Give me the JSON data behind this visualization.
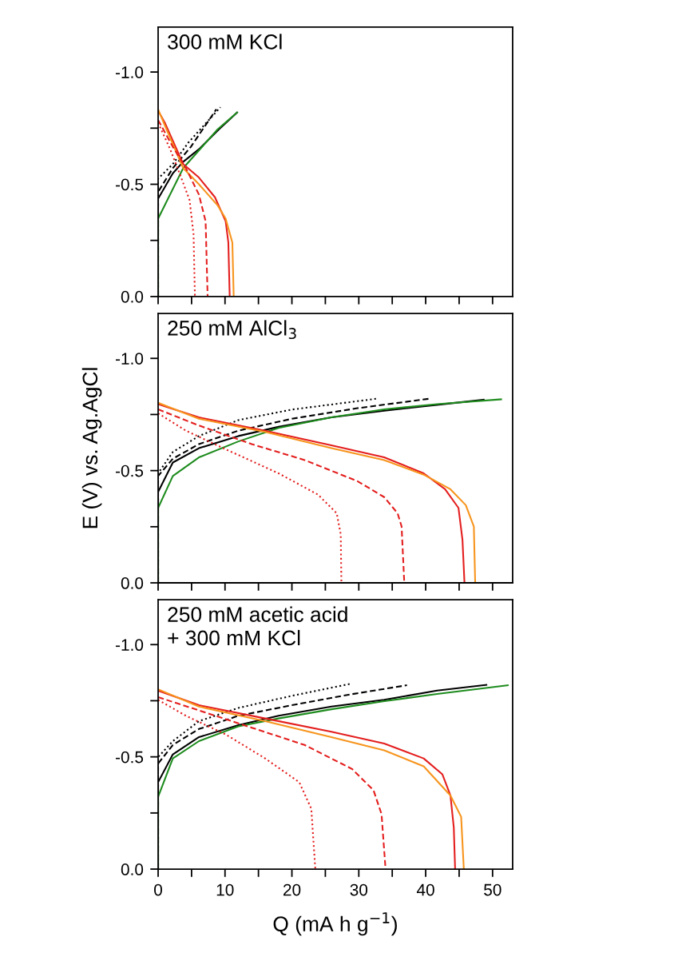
{
  "chart_data": [
    {
      "type": "line",
      "title": "300 mM KCl",
      "xlim": [
        0,
        53
      ],
      "ylim": [
        0,
        -1.2
      ],
      "tick_labels": "y",
      "xticks": [
        0,
        {
          "value": 5,
          "label": null
        },
        10,
        {
          "value": 15,
          "label": null
        },
        20,
        {
          "value": 25,
          "label": null
        },
        30,
        {
          "value": 35,
          "label": null
        },
        40,
        {
          "value": 45,
          "label": null
        },
        50
      ],
      "yticks": [
        {
          "value": 0.0,
          "label": "0.0"
        },
        {
          "value": -0.25,
          "label": null
        },
        {
          "value": -0.5,
          "label": "-0.5"
        },
        {
          "value": -0.75,
          "label": null
        },
        {
          "value": -1.0,
          "label": "-1.0"
        }
      ],
      "series": [
        {
          "color": "#000000",
          "line_style": "solid",
          "x": [
            0,
            0,
            2.2,
            3.75,
            6.1,
            9.1,
            11.9
          ],
          "values": [
            0,
            -0.436,
            -0.549,
            -0.6,
            -0.656,
            -0.745,
            -0.822
          ]
        },
        {
          "color": "#000000",
          "line_style": "dashed",
          "x": [
            0,
            0,
            2.2,
            4.9,
            8.7
          ],
          "values": [
            0,
            -0.466,
            -0.572,
            -0.667,
            -0.834
          ]
        },
        {
          "color": "#000000",
          "line_style": "dotted",
          "x": [
            0,
            0,
            2.2,
            4.5,
            9.3
          ],
          "values": [
            0,
            -0.525,
            -0.59,
            -0.685,
            -0.843
          ]
        },
        {
          "color": "#1e8c1e",
          "line_style": "solid",
          "x": [
            0,
            0,
            3.75,
            8.9,
            11.9
          ],
          "values": [
            0,
            -0.347,
            -0.572,
            -0.745,
            -0.822
          ]
        },
        {
          "color": "#e41e1e",
          "line_style": "solid",
          "x": [
            0,
            1,
            3.75,
            6.1,
            8.5,
            10.1,
            10.5,
            10.7
          ],
          "values": [
            -0.828,
            -0.774,
            -0.59,
            -0.53,
            -0.442,
            -0.335,
            -0.24,
            0
          ]
        },
        {
          "color": "#f7941d",
          "line_style": "solid",
          "x": [
            0,
            1,
            3.75,
            6.1,
            8.9,
            10.1,
            11.1,
            11.3
          ],
          "values": [
            -0.834,
            -0.762,
            -0.572,
            -0.5,
            -0.406,
            -0.347,
            -0.24,
            0
          ]
        },
        {
          "color": "#e41e1e",
          "line_style": "dashed",
          "x": [
            0,
            2.2,
            4.15,
            6.1,
            7.1,
            7.4
          ],
          "values": [
            -0.786,
            -0.667,
            -0.572,
            -0.454,
            -0.335,
            0
          ]
        },
        {
          "color": "#e41e1e",
          "line_style": "dotted",
          "x": [
            0,
            1.8,
            3.2,
            4.7,
            5.3,
            5.5
          ],
          "values": [
            -0.774,
            -0.656,
            -0.549,
            -0.43,
            -0.276,
            0
          ]
        }
      ]
    },
    {
      "type": "line",
      "title": "250 mM AlCl$_{3}$",
      "ylabel": "E (V) vs. Ag.AgCl",
      "xlim": [
        0,
        53
      ],
      "ylim": [
        0,
        -1.2
      ],
      "tick_labels": "y",
      "xticks": [
        0,
        {
          "value": 5,
          "label": null
        },
        10,
        {
          "value": 15,
          "label": null
        },
        20,
        {
          "value": 25,
          "label": null
        },
        30,
        {
          "value": 35,
          "label": null
        },
        40,
        {
          "value": 45,
          "label": null
        },
        50
      ],
      "yticks": [
        {
          "value": 0.0,
          "label": "0.0"
        },
        {
          "value": -0.25,
          "label": null
        },
        {
          "value": -0.5,
          "label": "-0.5"
        },
        {
          "value": -0.75,
          "label": null
        },
        {
          "value": -1.0,
          "label": "-1.0"
        }
      ],
      "series": [
        {
          "color": "#000000",
          "line_style": "solid",
          "x": [
            0,
            0,
            2.2,
            6.1,
            12,
            18,
            25.9,
            33.8,
            41.7,
            48.8
          ],
          "values": [
            0,
            -0.405,
            -0.536,
            -0.6,
            -0.654,
            -0.695,
            -0.737,
            -0.767,
            -0.793,
            -0.816
          ]
        },
        {
          "color": "#000000",
          "line_style": "dashed",
          "x": [
            0,
            0,
            2.2,
            6.1,
            12,
            20,
            29.8,
            40.5
          ],
          "values": [
            0,
            -0.476,
            -0.553,
            -0.618,
            -0.678,
            -0.731,
            -0.778,
            -0.82
          ]
        },
        {
          "color": "#000000",
          "line_style": "dotted",
          "x": [
            0,
            0,
            2.2,
            6.1,
            12,
            20,
            32.6
          ],
          "values": [
            0,
            -0.488,
            -0.583,
            -0.654,
            -0.725,
            -0.772,
            -0.82
          ]
        },
        {
          "color": "#1e8c1e",
          "line_style": "solid",
          "x": [
            0,
            0,
            2.2,
            6.1,
            12,
            18,
            25.9,
            33.8,
            41.7,
            51.4
          ],
          "values": [
            0,
            -0.334,
            -0.476,
            -0.559,
            -0.63,
            -0.69,
            -0.737,
            -0.773,
            -0.796,
            -0.818
          ]
        },
        {
          "color": "#e41e1e",
          "line_style": "solid",
          "x": [
            0,
            6.1,
            16,
            25.9,
            33.8,
            39.7,
            42.9,
            44.9,
            45.5,
            45.8
          ],
          "values": [
            -0.796,
            -0.737,
            -0.678,
            -0.613,
            -0.559,
            -0.488,
            -0.417,
            -0.334,
            -0.192,
            0
          ]
        },
        {
          "color": "#f7941d",
          "line_style": "solid",
          "x": [
            0,
            6.1,
            16,
            25.9,
            33.8,
            39.7,
            43.7,
            46,
            47.2,
            47.4
          ],
          "values": [
            -0.802,
            -0.731,
            -0.672,
            -0.6,
            -0.547,
            -0.482,
            -0.417,
            -0.346,
            -0.251,
            0
          ]
        },
        {
          "color": "#e41e1e",
          "line_style": "dashed",
          "x": [
            0,
            6.1,
            14,
            21.9,
            29.8,
            33.8,
            35.8,
            36.4,
            36.8
          ],
          "values": [
            -0.773,
            -0.701,
            -0.618,
            -0.547,
            -0.453,
            -0.382,
            -0.31,
            -0.251,
            0
          ]
        },
        {
          "color": "#e41e1e",
          "line_style": "dotted",
          "x": [
            0,
            4.15,
            10.1,
            18,
            23.9,
            26.7,
            27.3,
            27.4
          ],
          "values": [
            -0.755,
            -0.678,
            -0.595,
            -0.488,
            -0.393,
            -0.31,
            -0.216,
            0
          ]
        }
      ]
    },
    {
      "type": "line",
      "title": "250 mM acetic acid\n+ 300 mM KCl",
      "xlabel": "Q (mA h g$^{−1}$)",
      "xlim": [
        0,
        53
      ],
      "ylim": [
        0,
        -1.2
      ],
      "xticks": [
        0,
        {
          "value": 5,
          "label": null
        },
        10,
        {
          "value": 15,
          "label": null
        },
        20,
        {
          "value": 25,
          "label": null
        },
        30,
        {
          "value": 35,
          "label": null
        },
        40,
        {
          "value": 45,
          "label": null
        },
        50
      ],
      "yticks": [
        {
          "value": 0.0,
          "label": "0.0"
        },
        {
          "value": -0.25,
          "label": null
        },
        {
          "value": -0.5,
          "label": "-0.5"
        },
        {
          "value": -0.75,
          "label": null
        },
        {
          "value": -1.0,
          "label": "-1.0"
        }
      ],
      "series": [
        {
          "color": "#000000",
          "line_style": "solid",
          "x": [
            0,
            0,
            2.2,
            6.1,
            12,
            18,
            25.9,
            33.8,
            41.7,
            49.2
          ],
          "values": [
            0,
            -0.387,
            -0.511,
            -0.588,
            -0.641,
            -0.683,
            -0.724,
            -0.754,
            -0.795,
            -0.821
          ]
        },
        {
          "color": "#000000",
          "line_style": "dashed",
          "x": [
            0,
            0,
            2.2,
            6.1,
            12,
            20,
            28.7,
            37.2
          ],
          "values": [
            0,
            -0.47,
            -0.553,
            -0.624,
            -0.683,
            -0.73,
            -0.778,
            -0.819
          ]
        },
        {
          "color": "#000000",
          "line_style": "dotted",
          "x": [
            0,
            0,
            2.2,
            6.1,
            12,
            20,
            28.7
          ],
          "values": [
            0,
            -0.499,
            -0.57,
            -0.659,
            -0.718,
            -0.772,
            -0.825
          ]
        },
        {
          "color": "#1e8c1e",
          "line_style": "solid",
          "x": [
            0,
            0,
            2.2,
            6.1,
            12,
            18,
            25.9,
            33.8,
            41.7,
            52.4
          ],
          "values": [
            0,
            -0.322,
            -0.493,
            -0.57,
            -0.636,
            -0.671,
            -0.712,
            -0.748,
            -0.78,
            -0.819
          ]
        },
        {
          "color": "#e41e1e",
          "line_style": "solid",
          "x": [
            0,
            6.1,
            16,
            25.9,
            33.8,
            39.7,
            42.5,
            43.7,
            44.2,
            44.4
          ],
          "values": [
            -0.795,
            -0.73,
            -0.671,
            -0.612,
            -0.559,
            -0.493,
            -0.422,
            -0.328,
            -0.186,
            0
          ]
        },
        {
          "color": "#f7941d",
          "line_style": "solid",
          "x": [
            0,
            6.1,
            16,
            25.9,
            33.8,
            39.7,
            43.7,
            45.3,
            45.7
          ],
          "values": [
            -0.801,
            -0.724,
            -0.659,
            -0.588,
            -0.529,
            -0.458,
            -0.328,
            -0.233,
            0
          ]
        },
        {
          "color": "#e41e1e",
          "line_style": "dashed",
          "x": [
            0,
            6.1,
            14,
            21.9,
            29,
            32.2,
            33.4,
            34
          ],
          "values": [
            -0.766,
            -0.707,
            -0.63,
            -0.553,
            -0.446,
            -0.351,
            -0.245,
            0
          ]
        },
        {
          "color": "#e41e1e",
          "line_style": "dotted",
          "x": [
            0,
            4.15,
            10.1,
            16,
            21.1,
            22.9,
            23.5
          ],
          "values": [
            -0.754,
            -0.683,
            -0.6,
            -0.493,
            -0.387,
            -0.269,
            0
          ]
        }
      ]
    }
  ]
}
